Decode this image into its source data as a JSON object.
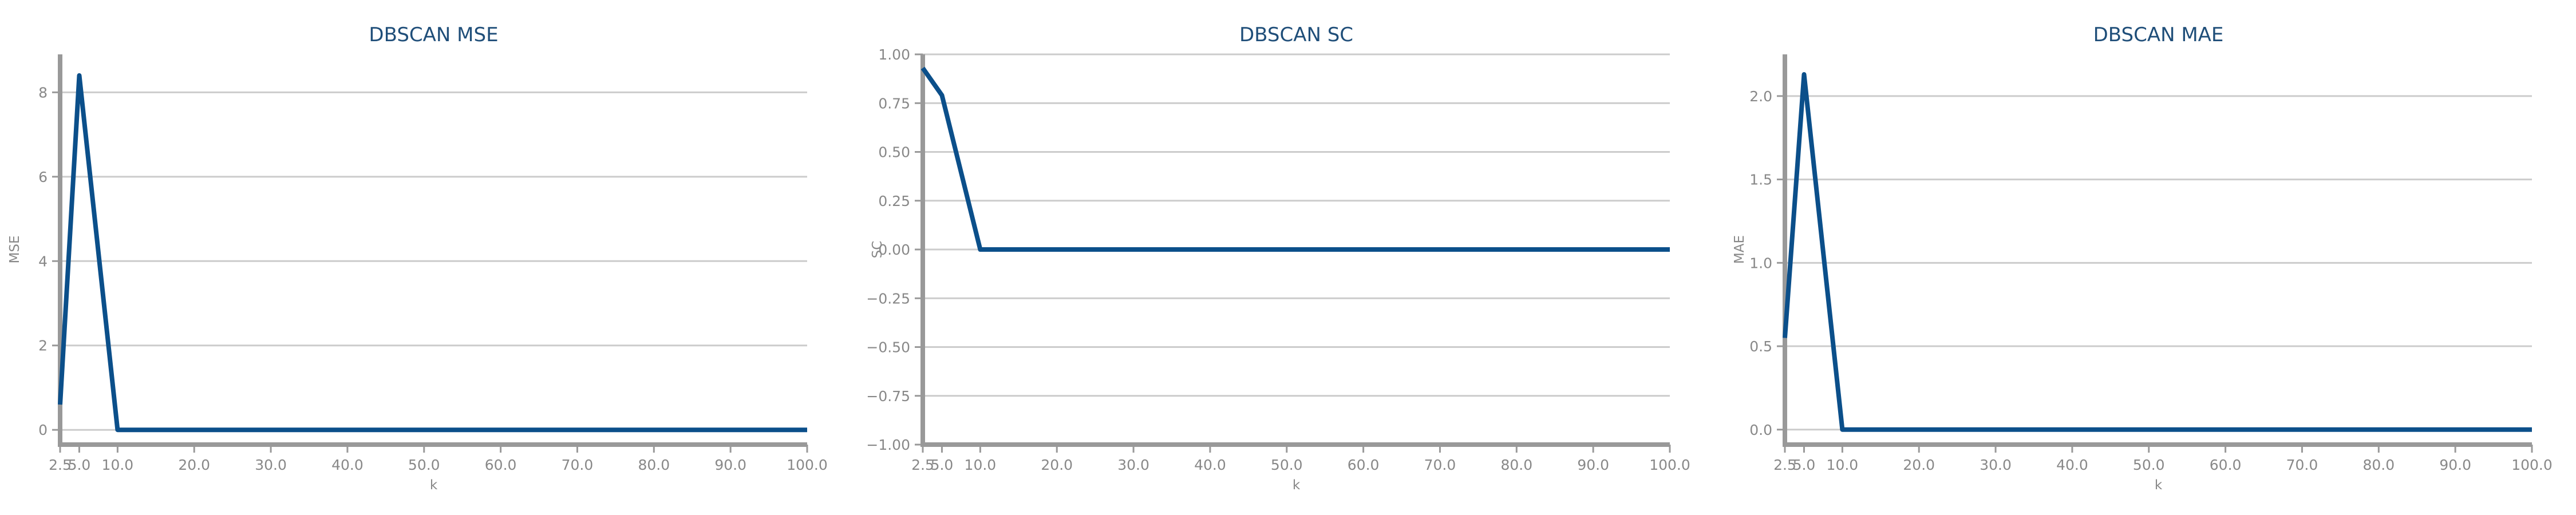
{
  "chart_data": [
    {
      "type": "line",
      "title": "DBSCAN MSE",
      "xlabel": "k",
      "ylabel": "MSE",
      "x": [
        2.5,
        5.0,
        10.0,
        20.0,
        30.0,
        40.0,
        50.0,
        60.0,
        70.0,
        80.0,
        90.0,
        100.0
      ],
      "series": [
        {
          "values": [
            0.6,
            8.4,
            0,
            0,
            0,
            0,
            0,
            0,
            0,
            0,
            0,
            0
          ]
        }
      ],
      "xlim": [
        2.5,
        100.0
      ],
      "ylim": [
        -0.35,
        8.9
      ],
      "xticks": [
        2.5,
        5.0,
        10.0,
        20.0,
        30.0,
        40.0,
        50.0,
        60.0,
        70.0,
        80.0,
        90.0,
        100.0
      ],
      "xtick_labels": [
        "2.5",
        "5.0",
        "10.0",
        "20.0",
        "30.0",
        "40.0",
        "50.0",
        "60.0",
        "70.0",
        "80.0",
        "90.0",
        "100.0"
      ],
      "yticks": [
        0,
        2,
        4,
        6,
        8
      ],
      "ytick_labels": [
        "0",
        "2",
        "4",
        "6",
        "8"
      ],
      "grid": true,
      "color": "#0b4f8a"
    },
    {
      "type": "line",
      "title": "DBSCAN SC",
      "xlabel": "k",
      "ylabel": "SC",
      "x": [
        2.5,
        5.0,
        10.0,
        20.0,
        30.0,
        40.0,
        50.0,
        60.0,
        70.0,
        80.0,
        90.0,
        100.0
      ],
      "series": [
        {
          "values": [
            0.93,
            0.79,
            0,
            0,
            0,
            0,
            0,
            0,
            0,
            0,
            0,
            0
          ]
        }
      ],
      "xlim": [
        2.5,
        100.0
      ],
      "ylim": [
        -1.0,
        1.0
      ],
      "xticks": [
        2.5,
        5.0,
        10.0,
        20.0,
        30.0,
        40.0,
        50.0,
        60.0,
        70.0,
        80.0,
        90.0,
        100.0
      ],
      "xtick_labels": [
        "2.5",
        "5.0",
        "10.0",
        "20.0",
        "30.0",
        "40.0",
        "50.0",
        "60.0",
        "70.0",
        "80.0",
        "90.0",
        "100.0"
      ],
      "yticks": [
        -1.0,
        -0.75,
        -0.5,
        -0.25,
        0.0,
        0.25,
        0.5,
        0.75,
        1.0
      ],
      "ytick_labels": [
        "−1.00",
        "−0.75",
        "−0.50",
        "−0.25",
        "0.00",
        "0.25",
        "0.50",
        "0.75",
        "1.00"
      ],
      "grid": true,
      "color": "#0b4f8a"
    },
    {
      "type": "line",
      "title": "DBSCAN MAE",
      "xlabel": "k",
      "ylabel": "MAE",
      "x": [
        2.5,
        5.0,
        10.0,
        20.0,
        30.0,
        40.0,
        50.0,
        60.0,
        70.0,
        80.0,
        90.0,
        100.0
      ],
      "series": [
        {
          "values": [
            0.55,
            2.13,
            0,
            0,
            0,
            0,
            0,
            0,
            0,
            0,
            0,
            0
          ]
        }
      ],
      "xlim": [
        2.5,
        100.0
      ],
      "ylim": [
        -0.09,
        2.25
      ],
      "xticks": [
        2.5,
        5.0,
        10.0,
        20.0,
        30.0,
        40.0,
        50.0,
        60.0,
        70.0,
        80.0,
        90.0,
        100.0
      ],
      "xtick_labels": [
        "2.5",
        "5.0",
        "10.0",
        "20.0",
        "30.0",
        "40.0",
        "50.0",
        "60.0",
        "70.0",
        "80.0",
        "90.0",
        "100.0"
      ],
      "yticks": [
        0.0,
        0.5,
        1.0,
        1.5,
        2.0
      ],
      "ytick_labels": [
        "0.0",
        "0.5",
        "1.0",
        "1.5",
        "2.0"
      ],
      "grid": true,
      "color": "#0b4f8a"
    }
  ]
}
